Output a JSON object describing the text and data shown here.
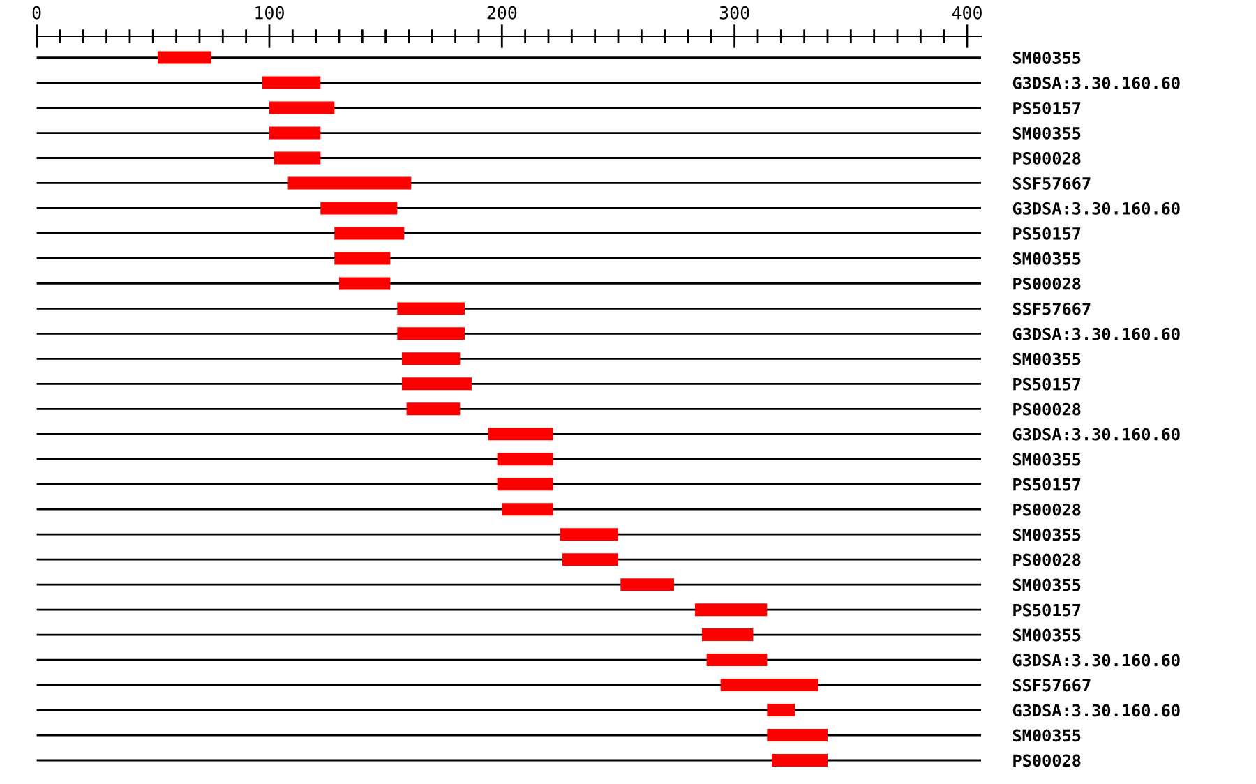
{
  "chart_data": {
    "type": "bar",
    "orientation": "horizontal",
    "grid": "y",
    "categories": [
      "SM00355",
      "G3DSA:3.30.160.60",
      "PS50157",
      "SM00355",
      "PS00028",
      "SSF57667",
      "G3DSA:3.30.160.60",
      "PS50157",
      "SM00355",
      "PS00028",
      "SSF57667",
      "G3DSA:3.30.160.60",
      "SM00355",
      "PS50157",
      "PS00028",
      "G3DSA:3.30.160.60",
      "SM00355",
      "PS50157",
      "PS00028",
      "SM00355",
      "PS00028",
      "SM00355",
      "PS50157",
      "SM00355",
      "G3DSA:3.30.160.60",
      "SSF57667",
      "G3DSA:3.30.160.60",
      "SM00355",
      "PS00028"
    ],
    "base": [
      52,
      97,
      100,
      100,
      102,
      108,
      122,
      128,
      128,
      130,
      155,
      155,
      157,
      157,
      159,
      194,
      198,
      198,
      200,
      225,
      226,
      251,
      283,
      286,
      288,
      294,
      314,
      314,
      316
    ],
    "values": [
      23,
      25,
      28,
      22,
      20,
      53,
      33,
      30,
      24,
      22,
      29,
      29,
      25,
      30,
      23,
      28,
      24,
      24,
      22,
      25,
      24,
      23,
      31,
      22,
      26,
      42,
      12,
      26,
      24
    ],
    "color": "#ff0000",
    "xlim": [
      0,
      406
    ],
    "xticks": [
      0,
      {
        "value": 10,
        "label": null
      },
      {
        "value": 20,
        "label": null
      },
      {
        "value": 30,
        "label": null
      },
      {
        "value": 40,
        "label": null
      },
      {
        "value": 50,
        "label": null
      },
      {
        "value": 60,
        "label": null
      },
      {
        "value": 70,
        "label": null
      },
      {
        "value": 80,
        "label": null
      },
      {
        "value": 90,
        "label": null
      },
      100,
      {
        "value": 110,
        "label": null
      },
      {
        "value": 120,
        "label": null
      },
      {
        "value": 130,
        "label": null
      },
      {
        "value": 140,
        "label": null
      },
      {
        "value": 150,
        "label": null
      },
      {
        "value": 160,
        "label": null
      },
      {
        "value": 170,
        "label": null
      },
      {
        "value": 180,
        "label": null
      },
      {
        "value": 190,
        "label": null
      },
      200,
      {
        "value": 210,
        "label": null
      },
      {
        "value": 220,
        "label": null
      },
      {
        "value": 230,
        "label": null
      },
      {
        "value": 240,
        "label": null
      },
      {
        "value": 250,
        "label": null
      },
      {
        "value": 260,
        "label": null
      },
      {
        "value": 270,
        "label": null
      },
      {
        "value": 280,
        "label": null
      },
      {
        "value": 290,
        "label": null
      },
      300,
      {
        "value": 310,
        "label": null
      },
      {
        "value": 320,
        "label": null
      },
      {
        "value": 330,
        "label": null
      },
      {
        "value": 340,
        "label": null
      },
      {
        "value": 350,
        "label": null
      },
      {
        "value": 360,
        "label": null
      },
      {
        "value": 370,
        "label": null
      },
      {
        "value": 380,
        "label": null
      },
      {
        "value": 390,
        "label": null
      },
      400
    ]
  }
}
